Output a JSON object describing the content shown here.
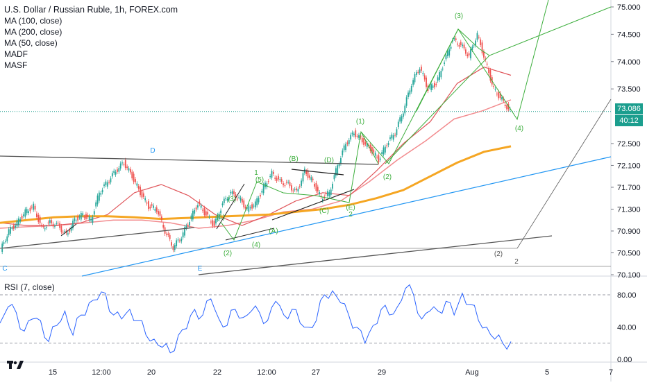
{
  "header": {
    "title": "U.S. Dollar / Russian Ruble, 1h, FOREX.com",
    "indicators": [
      "MA (100, close)",
      "MA (200, close)",
      "MA (50, close)",
      "MADF",
      "MASF"
    ]
  },
  "rsi_panel": {
    "label": "RSI (7, close)"
  },
  "price_badges": {
    "last_price": "73.086",
    "countdown": "40:12"
  },
  "colors": {
    "candle_up": "#26a69a",
    "candle_down": "#ef5350",
    "ma_200": "#f5a623",
    "ma_50": "#e0565b",
    "ma_100": "#f28b8e",
    "wave": "#3cae3c",
    "channel": "#2196f3",
    "trendline": "#555555",
    "rsi": "#2962ff",
    "last_price_line": "#1b9e8e"
  },
  "chart_data": [
    {
      "type": "line",
      "title": "U.S. Dollar / Russian Ruble, 1h, FOREX.com",
      "x_tick_labels": [
        "15",
        "12:00",
        "20",
        "22",
        "12:00",
        "27",
        "29",
        "Aug",
        "5",
        "7"
      ],
      "y_tick_labels": [
        "75.000",
        "74.500",
        "74.000",
        "73.500",
        "72.500",
        "72.100",
        "71.700",
        "71.300",
        "70.900",
        "70.500",
        "70.100"
      ],
      "ylim": [
        70.1,
        75.0
      ],
      "last_price": 73.086,
      "wave_labels": [
        "(1)",
        "(2)",
        "(3)",
        "(4)",
        "(5)",
        "(A)",
        "(B)",
        "(C)",
        "(D)",
        "(E)",
        "C",
        "D",
        "E",
        "1",
        "2"
      ],
      "series": [
        {
          "name": "price",
          "values": [
            70.55,
            70.9,
            71.05,
            71.25,
            71.35,
            70.95,
            71.05,
            71.0,
            70.82,
            71.1,
            71.2,
            71.1,
            71.6,
            71.8,
            72.0,
            72.15,
            71.9,
            71.6,
            71.35,
            71.3,
            70.9,
            70.6,
            70.8,
            71.1,
            71.4,
            71.2,
            71.0,
            71.4,
            71.6,
            71.5,
            71.3,
            71.4,
            71.7,
            71.95,
            71.8,
            71.75,
            71.6,
            72.0,
            71.8,
            71.5,
            71.6,
            72.1,
            72.5,
            72.7,
            72.55,
            72.4,
            72.2,
            72.5,
            72.7,
            73.1,
            73.6,
            73.9,
            73.5,
            73.6,
            74.0,
            74.4,
            74.3,
            74.1,
            74.5,
            74.0,
            73.5,
            73.3,
            73.086
          ]
        },
        {
          "name": "MA (200, close)",
          "values": [
            71.05,
            71.1,
            71.15,
            71.17,
            71.17,
            71.15,
            71.12,
            71.14,
            71.16,
            71.18,
            71.2,
            71.25,
            71.3,
            71.38,
            71.5,
            71.65,
            71.9,
            72.15,
            72.35,
            72.45
          ]
        },
        {
          "name": "MA (50, close)",
          "values": [
            71.05,
            71.0,
            71.0,
            71.05,
            71.2,
            71.6,
            71.75,
            71.55,
            71.2,
            71.0,
            71.2,
            71.45,
            71.6,
            71.55,
            72.0,
            72.5,
            72.9,
            73.6,
            73.9,
            73.75
          ]
        },
        {
          "name": "MA (100, close)",
          "values": [
            70.95,
            70.98,
            71.0,
            71.05,
            71.1,
            71.1,
            71.05,
            70.95,
            71.0,
            71.1,
            71.25,
            71.3,
            71.45,
            71.8,
            72.2,
            72.55,
            72.95,
            73.1,
            73.3
          ]
        }
      ]
    },
    {
      "type": "line",
      "title": "RSI (7, close)",
      "y_tick_labels": [
        "80.00",
        "40.00",
        "0.00"
      ],
      "ylim": [
        0,
        100
      ],
      "levels": [
        80,
        20
      ],
      "series": [
        {
          "name": "RSI (7, close)",
          "values": [
            45,
            65,
            58,
            35,
            50,
            48,
            22,
            42,
            60,
            30,
            55,
            70,
            74,
            82,
            55,
            50,
            62,
            48,
            30,
            25,
            15,
            8,
            30,
            38,
            62,
            55,
            75,
            50,
            42,
            62,
            52,
            60,
            58,
            48,
            72,
            55,
            62,
            45,
            40,
            48,
            80,
            85,
            70,
            55,
            40,
            20,
            42,
            62,
            55,
            65,
            88,
            80,
            50,
            60,
            60,
            72,
            55,
            82,
            68,
            48,
            40,
            25,
            20,
            22
          ]
        }
      ]
    }
  ]
}
